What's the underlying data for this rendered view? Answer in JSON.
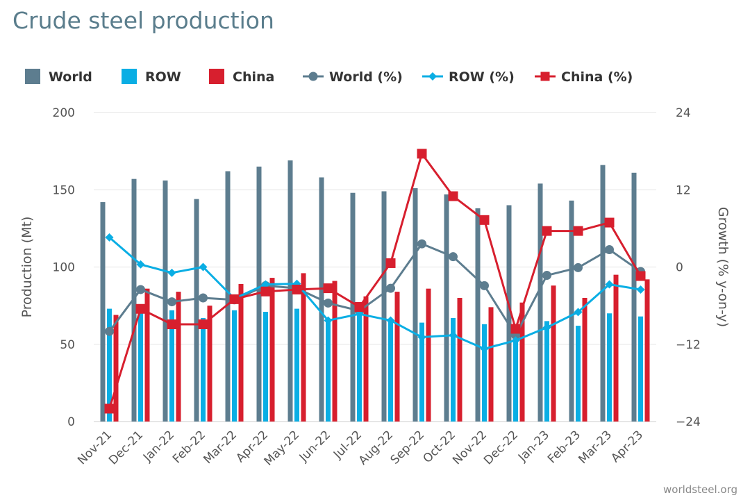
{
  "title": "Crude steel production",
  "source": "worldsteel.org",
  "colors": {
    "world": "#5d7d8f",
    "row": "#0aaee4",
    "china": "#d71f2e",
    "grid": "#e3e3e3"
  },
  "chart_data": {
    "type": "bar",
    "title": "Crude steel production",
    "categories": [
      "Nov-21",
      "Dec-21",
      "Jan-22",
      "Feb-22",
      "Mar-22",
      "Apr-22",
      "May-22",
      "Jun-22",
      "Jul-22",
      "Aug-22",
      "Sep-22",
      "Oct-22",
      "Nov-22",
      "Dec-22",
      "Jan-23",
      "Feb-23",
      "Mar-23",
      "Apr-23"
    ],
    "ylabel": "Production (Mt)",
    "y2label": "Growth (% y-on-y)",
    "ylim": [
      0,
      200
    ],
    "yticks": [
      0,
      50,
      100,
      150,
      200
    ],
    "y2lim": [
      -24,
      24
    ],
    "y2ticks": [
      -24,
      -12,
      0,
      12,
      24
    ],
    "grid": true,
    "legend_position": "top",
    "series": [
      {
        "name": "World",
        "type": "bar",
        "axis": "left",
        "color": "#5d7d8f",
        "values": [
          142,
          157,
          156,
          144,
          162,
          165,
          169,
          158,
          148,
          149,
          151,
          147,
          138,
          140,
          154,
          143,
          166,
          161
        ]
      },
      {
        "name": "ROW",
        "type": "bar",
        "axis": "left",
        "color": "#0aaee4",
        "values": [
          73,
          71,
          72,
          67,
          72,
          71,
          73,
          66,
          69,
          65,
          64,
          67,
          63,
          62,
          65,
          62,
          70,
          68
        ]
      },
      {
        "name": "China",
        "type": "bar",
        "axis": "left",
        "color": "#d71f2e",
        "values": [
          69,
          86,
          84,
          75,
          89,
          93,
          96,
          91,
          81,
          84,
          86,
          80,
          74,
          77,
          88,
          80,
          95,
          92
        ]
      },
      {
        "name": "World (%)",
        "type": "line",
        "axis": "right",
        "marker": "circle",
        "color": "#5d7d8f",
        "values": [
          -10,
          -3.5,
          -5.4,
          -4.8,
          -5.1,
          -2.9,
          -3.3,
          -5.6,
          -6.8,
          -3.3,
          3.6,
          1.6,
          -2.9,
          -10.6,
          -1.3,
          -0.1,
          2.7,
          -0.7
        ]
      },
      {
        "name": "ROW (%)",
        "type": "line",
        "axis": "right",
        "marker": "diamond",
        "color": "#0aaee4",
        "values": [
          4.6,
          0.4,
          -0.9,
          0.0,
          -4.9,
          -2.7,
          -2.6,
          -8.3,
          -7.3,
          -8.3,
          -10.9,
          -10.6,
          -12.7,
          -11.4,
          -9.4,
          -7.0,
          -2.7,
          -3.5
        ]
      },
      {
        "name": "China (%)",
        "type": "line",
        "axis": "right",
        "marker": "square",
        "color": "#d71f2e",
        "values": [
          -22.0,
          -6.5,
          -8.9,
          -8.9,
          -5.0,
          -3.8,
          -3.5,
          -3.3,
          -6.2,
          0.6,
          17.6,
          11.0,
          7.3,
          -9.6,
          5.6,
          5.6,
          6.9,
          -1.4
        ]
      }
    ]
  }
}
